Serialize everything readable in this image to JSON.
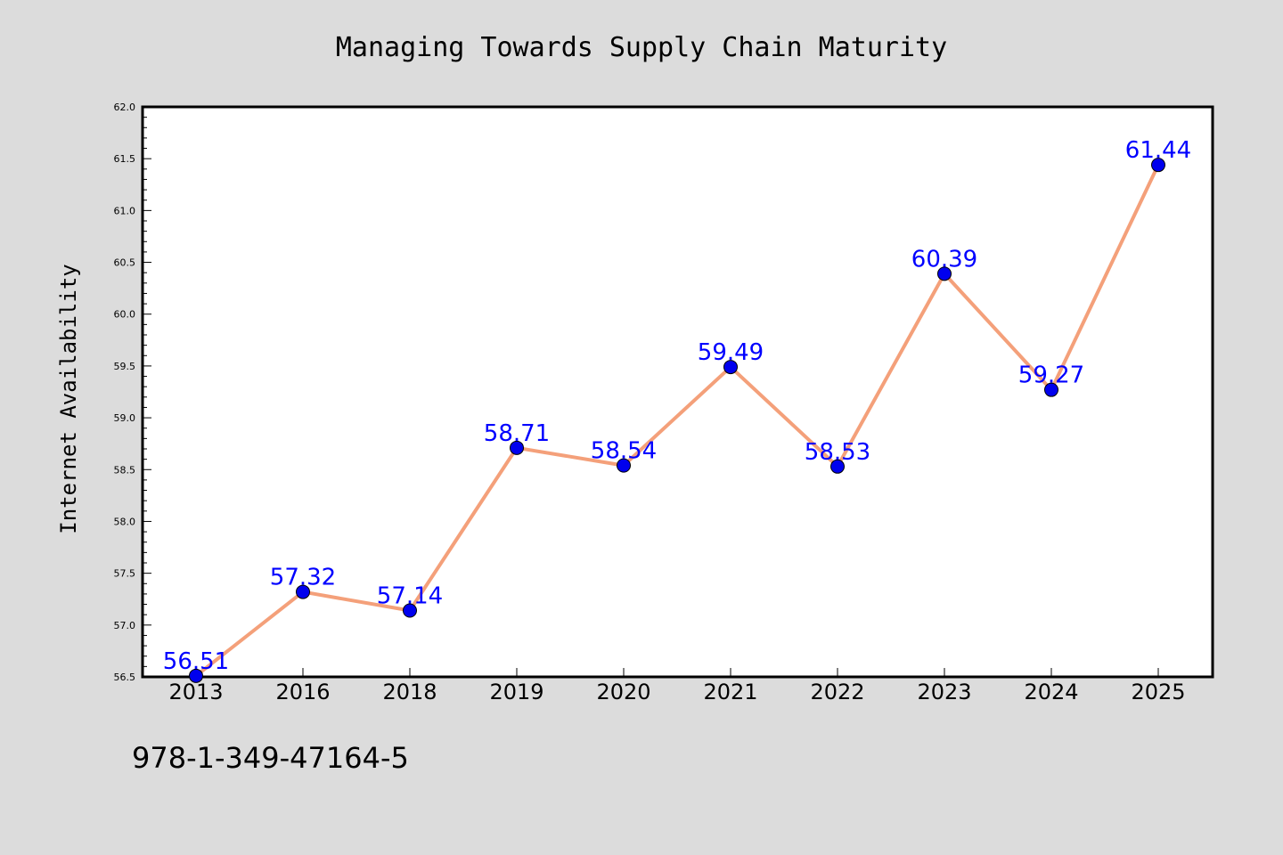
{
  "chart_data": {
    "type": "line",
    "title": "Managing Towards Supply Chain Maturity",
    "ylabel": "Internet Availability",
    "xlabel": "",
    "categories": [
      "2013",
      "2016",
      "2018",
      "2019",
      "2020",
      "2021",
      "2022",
      "2023",
      "2024",
      "2025"
    ],
    "series": [
      {
        "values": [
          56.51,
          57.32,
          57.14,
          58.71,
          58.54,
          59.49,
          58.53,
          60.39,
          59.27,
          61.44
        ],
        "data_labels": [
          "56.51",
          "57.32",
          "57.14",
          "58.71",
          "58.54",
          "59.49",
          "58.53",
          "60.39",
          "59.27",
          "61.44"
        ],
        "line_color": "#f4a07a",
        "marker_color": "#0000ee"
      }
    ],
    "ylim": [
      56.5,
      62.0
    ],
    "yticks": [
      "56.5",
      "57.0",
      "57.5",
      "58.0",
      "58.5",
      "59.0",
      "59.5",
      "60.0",
      "60.5",
      "61.0",
      "61.5",
      "62.0"
    ],
    "grid": false,
    "legend": "none",
    "label_color": "#0000ff",
    "background": "#dcdcdc",
    "plot_background": "#ffffff"
  },
  "footer": {
    "code": "978-1-349-47164-5"
  }
}
